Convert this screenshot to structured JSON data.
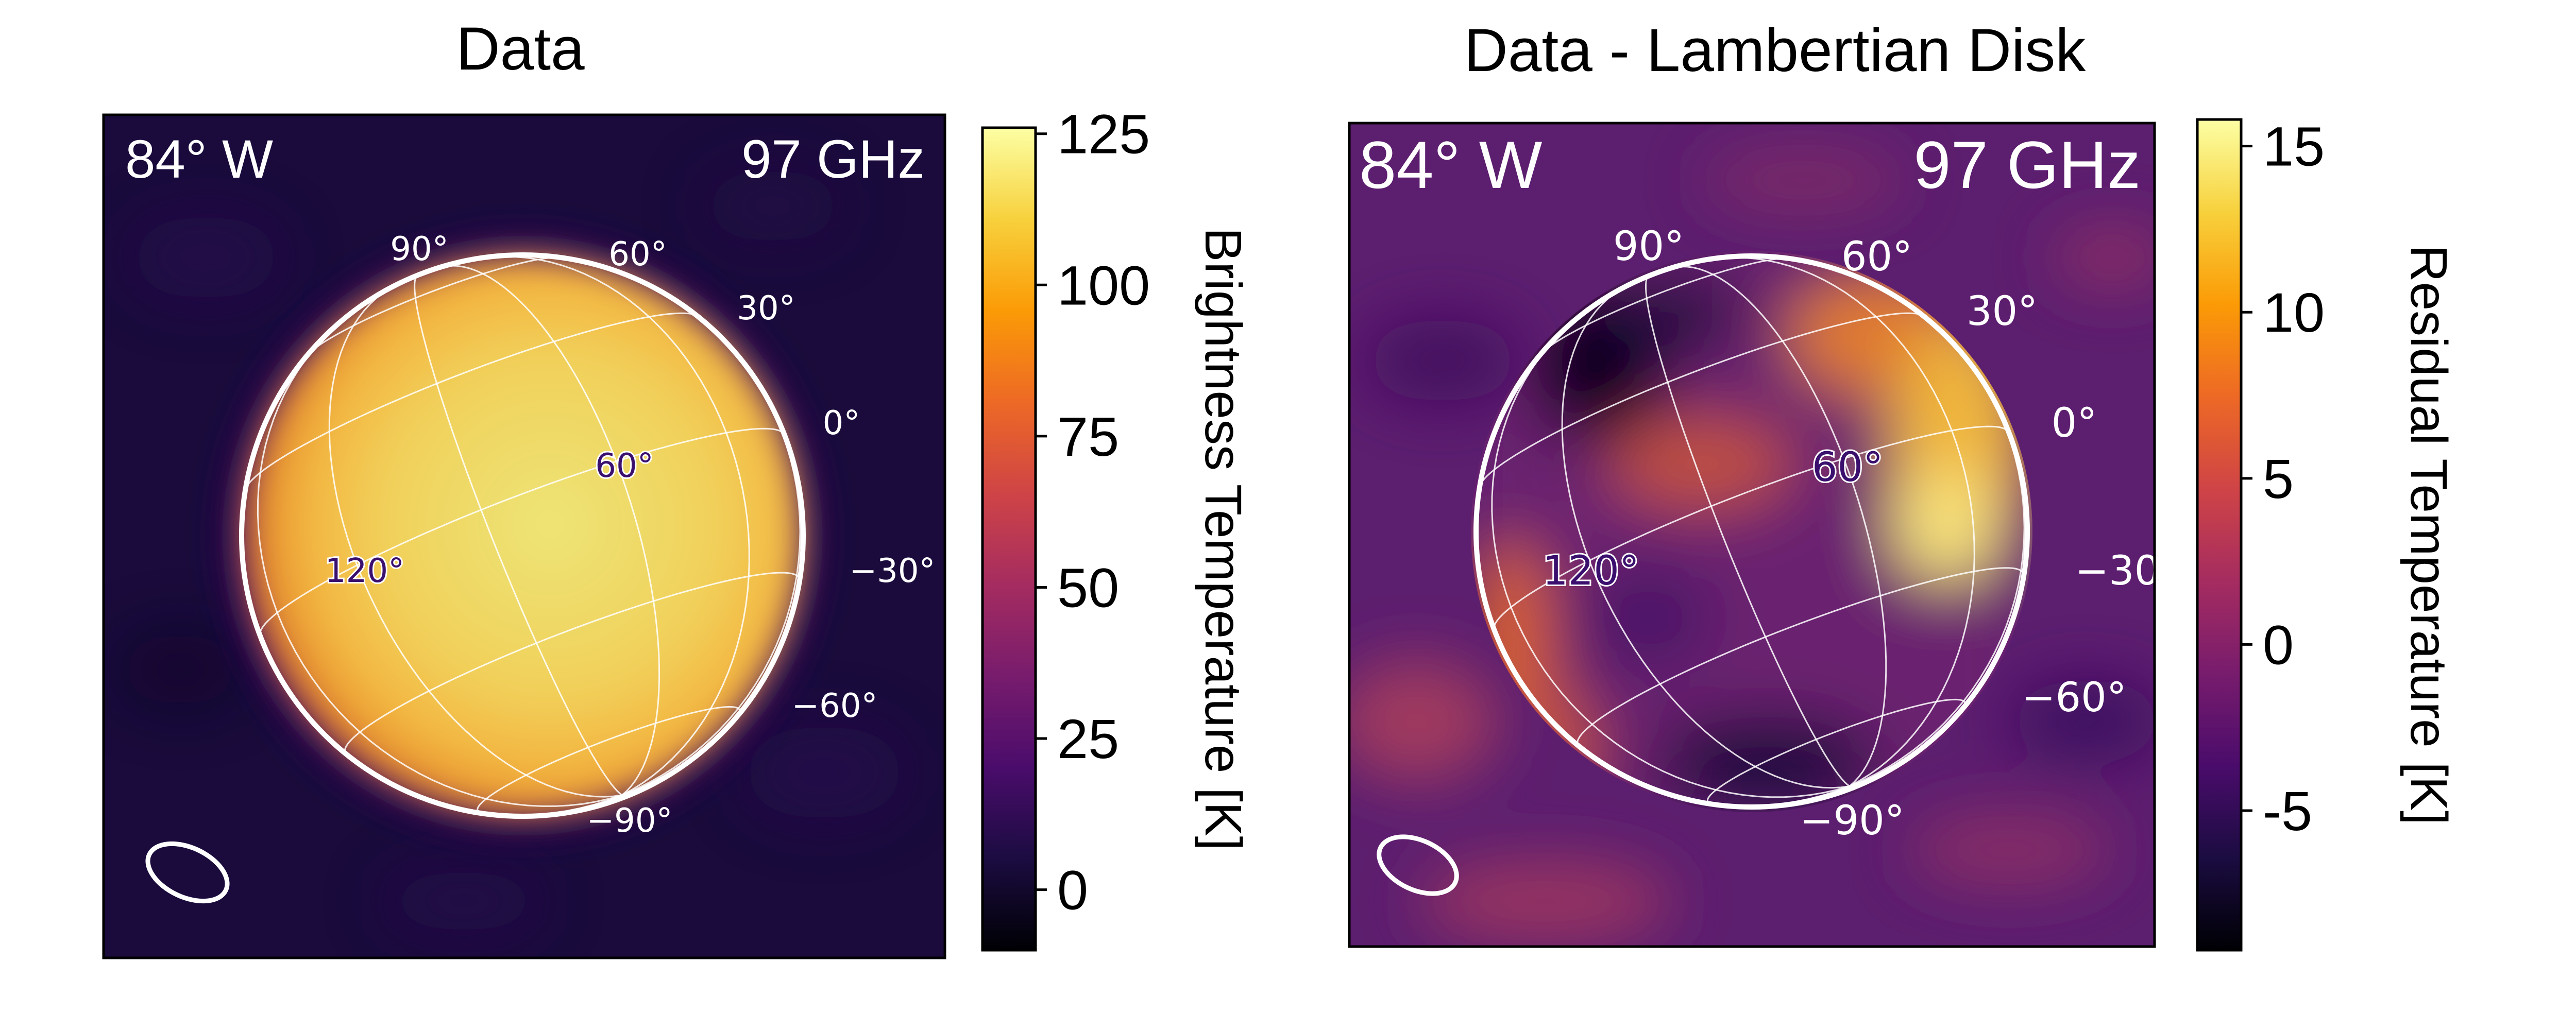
{
  "chart_data": [
    {
      "type": "heatmap",
      "title": "Data",
      "annotations": {
        "longitude": "84° W",
        "frequency": "97 GHz"
      },
      "colormap": "inferno",
      "colorbar": {
        "label": "Brightness Temperature [K]",
        "ticks": [
          0,
          25,
          50,
          75,
          100,
          125
        ],
        "tick_labels": [
          "0",
          "25",
          "50",
          "75",
          "100",
          "125"
        ],
        "range": [
          -10,
          126
        ]
      },
      "grid_labels": {
        "latitude": [
          "90°",
          "60°",
          "30°",
          "0°",
          "−30°",
          "−60°",
          "−90°"
        ],
        "longitude": [
          "60°",
          "120°"
        ]
      },
      "description_values": {
        "disk_peak_K": 120,
        "disk_limb_K": 80,
        "background_K": 0
      }
    },
    {
      "type": "heatmap",
      "title": "Data - Lambertian Disk",
      "annotations": {
        "longitude": "84° W",
        "frequency": "97 GHz"
      },
      "colormap": "inferno",
      "colorbar": {
        "label": "Residual Temperature [K]",
        "ticks": [
          -5,
          0,
          5,
          10,
          15
        ],
        "tick_labels": [
          "-5",
          "0",
          "5",
          "10",
          "15"
        ],
        "range": [
          -9.2,
          15.8
        ]
      },
      "grid_labels": {
        "latitude": [
          "90°",
          "60°",
          "30°",
          "0°",
          "−30",
          "−60°",
          "−90°"
        ],
        "longitude": [
          "60°",
          "120°"
        ]
      },
      "description_values": {
        "peak_residual_K": 15,
        "min_residual_K": -9
      }
    }
  ],
  "colors": {
    "inferno": [
      "#000004",
      "#1b0c41",
      "#4a0c6b",
      "#781c6d",
      "#a52c60",
      "#cf4446",
      "#ed6925",
      "#fb9b06",
      "#f7d13d",
      "#fcffa4"
    ]
  }
}
